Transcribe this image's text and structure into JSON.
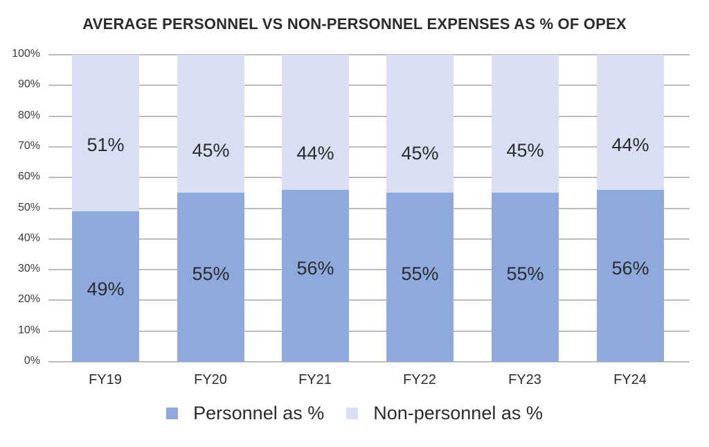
{
  "chart_data": {
    "type": "bar",
    "stacked": true,
    "title": "AVERAGE PERSONNEL VS NON-PERSONNEL EXPENSES AS % OF OPEX",
    "xlabel": "",
    "ylabel": "",
    "ylim": [
      0,
      100
    ],
    "yticks": [
      "0%",
      "10%",
      "20%",
      "30%",
      "40%",
      "50%",
      "60%",
      "70%",
      "80%",
      "90%",
      "100%"
    ],
    "categories": [
      "FY19",
      "FY20",
      "FY21",
      "FY22",
      "FY23",
      "FY24"
    ],
    "series": [
      {
        "name": "Personnel as %",
        "color": "#8eaadc",
        "values": [
          49,
          55,
          56,
          55,
          55,
          56
        ],
        "labels": [
          "49%",
          "55%",
          "56%",
          "55%",
          "55%",
          "56%"
        ]
      },
      {
        "name": "Non-personnel as %",
        "color": "#d9dff2",
        "values": [
          51,
          45,
          44,
          45,
          45,
          44
        ],
        "labels": [
          "51%",
          "45%",
          "44%",
          "45%",
          "45%",
          "44%"
        ]
      }
    ],
    "grid": true,
    "legend_position": "bottom"
  },
  "legend": {
    "personnel": "Personnel as %",
    "non_personnel": "Non-personnel as %"
  }
}
